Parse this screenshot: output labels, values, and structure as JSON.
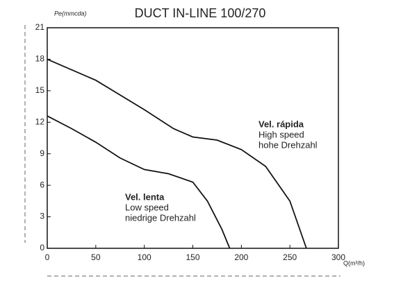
{
  "chart_data": {
    "type": "line",
    "title": "DUCT IN-LINE 100/270",
    "y_label": "Pe(mmcda)",
    "x_label": "Q(m³/h)",
    "xlim": [
      0,
      300
    ],
    "xticks": [
      0,
      50,
      100,
      150,
      200,
      250,
      300
    ],
    "ylim": [
      0,
      21
    ],
    "yticks": [
      0,
      3,
      6,
      9,
      12,
      15,
      18,
      21
    ],
    "grid": false,
    "series": [
      {
        "label_lines": [
          "Vel. rápida",
          "High speed",
          "hohe Drehzahl"
        ],
        "color": "#111",
        "x": [
          0,
          50,
          100,
          130,
          150,
          175,
          200,
          225,
          250,
          267
        ],
        "values": [
          18,
          16,
          13.2,
          11.4,
          10.6,
          10.3,
          9.4,
          7.8,
          4.5,
          0
        ]
      },
      {
        "label_lines": [
          "Vel. lenta",
          "Low speed",
          "niedrige Drehzahl"
        ],
        "color": "#111",
        "x": [
          0,
          25,
          50,
          75,
          100,
          125,
          150,
          165,
          180,
          188
        ],
        "values": [
          12.6,
          11.4,
          10.1,
          8.6,
          7.5,
          7.1,
          6.3,
          4.5,
          1.8,
          0
        ]
      }
    ]
  }
}
